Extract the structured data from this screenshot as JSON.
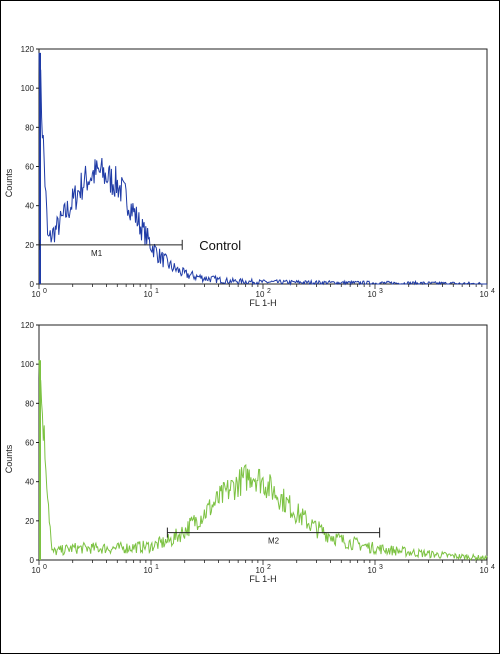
{
  "chart_data": [
    {
      "type": "line",
      "xscale": "log",
      "xlim": [
        1,
        10000
      ],
      "ylim": [
        0,
        120
      ],
      "ylabel": "Counts",
      "xlabel": "FL 1-H",
      "x_ticks": [
        "10",
        "10",
        "10",
        "10",
        "10"
      ],
      "x_tick_exponents": [
        "0",
        "1",
        "2",
        "3",
        "4"
      ],
      "y_ticks": [
        "0",
        "20",
        "40",
        "60",
        "80",
        "100",
        "120"
      ],
      "series": [
        {
          "name": "Control",
          "color": "#1f3ba6",
          "x": [
            1,
            1.2,
            1.5,
            2,
            2.5,
            3,
            3.5,
            4,
            5,
            6,
            7,
            8,
            10,
            12,
            15,
            20,
            30,
            50,
            100,
            1000,
            10000
          ],
          "y": [
            118,
            22,
            30,
            42,
            52,
            56,
            57,
            55,
            51,
            44,
            37,
            30,
            20,
            14,
            9,
            5,
            3,
            1.5,
            1,
            0.5,
            0
          ]
        }
      ],
      "marker": {
        "label": "M1",
        "x_start": 1,
        "x_end": 19,
        "y": 20
      },
      "annotation": "Control"
    },
    {
      "type": "line",
      "xscale": "log",
      "xlim": [
        1,
        10000
      ],
      "ylim": [
        0,
        120
      ],
      "ylabel": "Counts",
      "xlabel": "FL 1-H",
      "x_ticks": [
        "10",
        "10",
        "10",
        "10",
        "10"
      ],
      "x_tick_exponents": [
        "0",
        "1",
        "2",
        "3",
        "4"
      ],
      "y_ticks": [
        "0",
        "20",
        "40",
        "60",
        "80",
        "100",
        "120"
      ],
      "series": [
        {
          "name": "",
          "color": "#7cc242",
          "x": [
            1,
            1.3,
            2,
            3,
            5,
            10,
            15,
            20,
            30,
            50,
            70,
            80,
            100,
            150,
            200,
            300,
            500,
            1000,
            2000,
            5000,
            10000
          ],
          "y": [
            102,
            4,
            6,
            6,
            6,
            7,
            10,
            15,
            24,
            36,
            42,
            44,
            40,
            31,
            24,
            16,
            10,
            6,
            4,
            2,
            1
          ]
        }
      ],
      "marker": {
        "label": "M2",
        "x_start": 14,
        "x_end": 1100,
        "y": 14
      }
    }
  ]
}
